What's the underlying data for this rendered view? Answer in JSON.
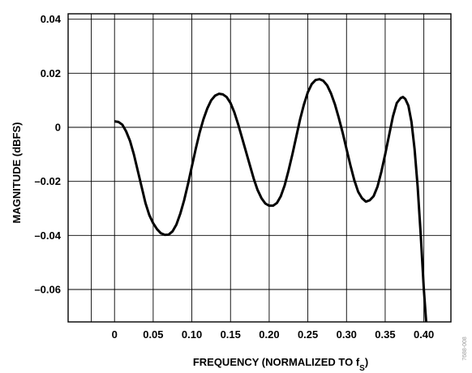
{
  "chart_data": {
    "type": "line",
    "title": "",
    "xlabel": "FREQUENCY (NORMALIZED TO f",
    "xlabel_subscript": "S",
    "xlabel_close": ")",
    "ylabel": "MAGNITUDE (dBFS)",
    "side_code": "7688-008",
    "xlim": [
      -0.06,
      0.435
    ],
    "ylim": [
      -0.072,
      0.042
    ],
    "x_ticks": [
      0,
      0.05,
      0.1,
      0.15,
      0.2,
      0.25,
      0.3,
      0.35,
      0.4
    ],
    "x_tick_labels": [
      "0",
      "0.05",
      "0.10",
      "0.15",
      "0.20",
      "0.25",
      "0.30",
      "0.35",
      "0.40"
    ],
    "x_grid": [
      -0.06,
      -0.03,
      0,
      0.05,
      0.1,
      0.15,
      0.2,
      0.25,
      0.3,
      0.35,
      0.4,
      0.435
    ],
    "y_ticks": [
      0.04,
      0.02,
      0,
      -0.02,
      -0.04,
      -0.06
    ],
    "y_tick_labels": [
      "0.04",
      "0.02",
      "0",
      "–0.02",
      "–0.04",
      "–0.06"
    ],
    "grid": true,
    "series": [
      {
        "points": [
          [
            0.0,
            0.0022
          ],
          [
            0.005,
            0.002
          ],
          [
            0.01,
            0.001
          ],
          [
            0.015,
            -0.0015
          ],
          [
            0.02,
            -0.005
          ],
          [
            0.025,
            -0.01
          ],
          [
            0.03,
            -0.016
          ],
          [
            0.035,
            -0.022
          ],
          [
            0.04,
            -0.028
          ],
          [
            0.045,
            -0.0325
          ],
          [
            0.05,
            -0.0355
          ],
          [
            0.055,
            -0.0377
          ],
          [
            0.06,
            -0.0392
          ],
          [
            0.065,
            -0.0398
          ],
          [
            0.07,
            -0.0397
          ],
          [
            0.075,
            -0.0385
          ],
          [
            0.08,
            -0.036
          ],
          [
            0.085,
            -0.032
          ],
          [
            0.09,
            -0.027
          ],
          [
            0.095,
            -0.021
          ],
          [
            0.1,
            -0.0145
          ],
          [
            0.105,
            -0.008
          ],
          [
            0.11,
            -0.002
          ],
          [
            0.115,
            0.003
          ],
          [
            0.12,
            0.007
          ],
          [
            0.125,
            0.01
          ],
          [
            0.13,
            0.0117
          ],
          [
            0.135,
            0.0124
          ],
          [
            0.14,
            0.0122
          ],
          [
            0.145,
            0.0112
          ],
          [
            0.15,
            0.009
          ],
          [
            0.155,
            0.0055
          ],
          [
            0.16,
            0.001
          ],
          [
            0.165,
            -0.004
          ],
          [
            0.17,
            -0.009
          ],
          [
            0.175,
            -0.014
          ],
          [
            0.18,
            -0.019
          ],
          [
            0.185,
            -0.0232
          ],
          [
            0.19,
            -0.0262
          ],
          [
            0.195,
            -0.0282
          ],
          [
            0.2,
            -0.029
          ],
          [
            0.205,
            -0.029
          ],
          [
            0.21,
            -0.028
          ],
          [
            0.215,
            -0.0255
          ],
          [
            0.22,
            -0.0215
          ],
          [
            0.225,
            -0.016
          ],
          [
            0.23,
            -0.01
          ],
          [
            0.235,
            -0.0035
          ],
          [
            0.24,
            0.003
          ],
          [
            0.245,
            0.0085
          ],
          [
            0.25,
            0.013
          ],
          [
            0.255,
            0.016
          ],
          [
            0.26,
            0.0175
          ],
          [
            0.265,
            0.0178
          ],
          [
            0.27,
            0.0172
          ],
          [
            0.275,
            0.0155
          ],
          [
            0.28,
            0.0125
          ],
          [
            0.285,
            0.0085
          ],
          [
            0.29,
            0.0035
          ],
          [
            0.295,
            -0.002
          ],
          [
            0.3,
            -0.008
          ],
          [
            0.305,
            -0.014
          ],
          [
            0.31,
            -0.0195
          ],
          [
            0.315,
            -0.0238
          ],
          [
            0.32,
            -0.0262
          ],
          [
            0.325,
            -0.0275
          ],
          [
            0.33,
            -0.027
          ],
          [
            0.335,
            -0.0255
          ],
          [
            0.34,
            -0.022
          ],
          [
            0.345,
            -0.0165
          ],
          [
            0.35,
            -0.01
          ],
          [
            0.355,
            -0.003
          ],
          [
            0.36,
            0.004
          ],
          [
            0.365,
            0.009
          ],
          [
            0.37,
            0.0108
          ],
          [
            0.373,
            0.0112
          ],
          [
            0.376,
            0.0105
          ],
          [
            0.38,
            0.008
          ],
          [
            0.384,
            0.002
          ],
          [
            0.388,
            -0.008
          ],
          [
            0.392,
            -0.022
          ],
          [
            0.396,
            -0.04
          ],
          [
            0.4,
            -0.06
          ],
          [
            0.403,
            -0.072
          ]
        ]
      }
    ]
  }
}
